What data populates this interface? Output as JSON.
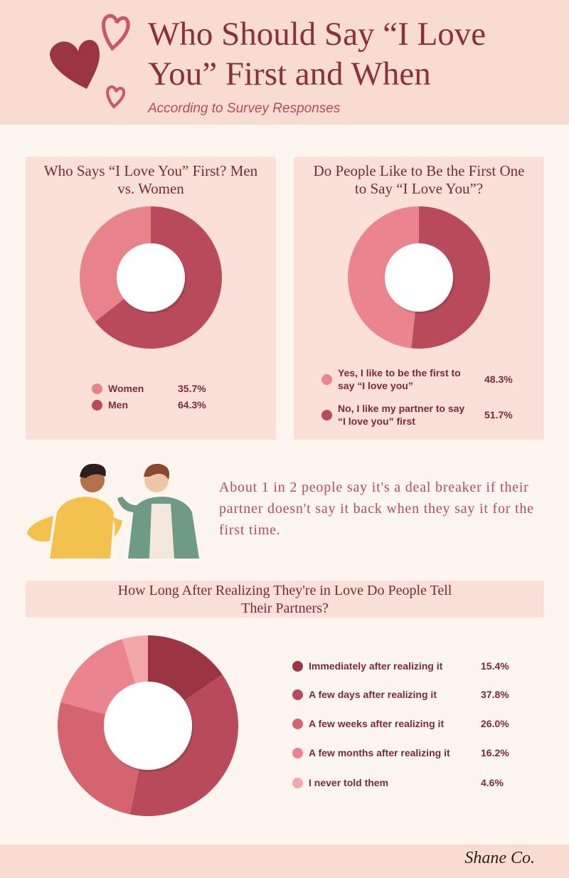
{
  "header": {
    "title": "Who Should Say “I Love You” First and When",
    "subtitle": "According to Survey Responses"
  },
  "chart_data": [
    {
      "type": "pie",
      "title": "Who Says “I Love You” First? Men vs. Women",
      "direction": "counterclockwise",
      "categories": [
        "Women",
        "Men"
      ],
      "values": [
        35.7,
        64.3
      ],
      "value_labels": [
        "35.7%",
        "64.3%"
      ],
      "colors": [
        "#e8838c",
        "#b94a5c"
      ]
    },
    {
      "type": "pie",
      "title": "Do People Like to Be the First One to Say “I Love You”?",
      "direction": "counterclockwise",
      "categories": [
        "Yes, I like to be the first to say “I love you”",
        "No, I like my partner to say “I love you” first"
      ],
      "values": [
        48.3,
        51.7
      ],
      "value_labels": [
        "48.3%",
        "51.7%"
      ],
      "colors": [
        "#ea8590",
        "#b94a5c"
      ]
    },
    {
      "type": "pie",
      "title": "How Long After Realizing They're in Love Do People Tell Their Partners?",
      "direction": "clockwise",
      "categories": [
        "Immediately after realizing it",
        "A few days after realizing it",
        "A few weeks after realizing it",
        "A few months after realizing it",
        "I never told them"
      ],
      "values": [
        15.4,
        37.8,
        26.0,
        16.2,
        4.6
      ],
      "value_labels": [
        "15.4%",
        "37.8%",
        "26.0%",
        "16.2%",
        "4.6%"
      ],
      "colors": [
        "#9b3443",
        "#b94a5c",
        "#d5646f",
        "#ea8590",
        "#f2a7a8"
      ]
    }
  ],
  "callout": "About 1 in 2 people say it's a deal breaker if their partner doesn't say it back when they say it for the first time.",
  "brand": "Shane Co."
}
